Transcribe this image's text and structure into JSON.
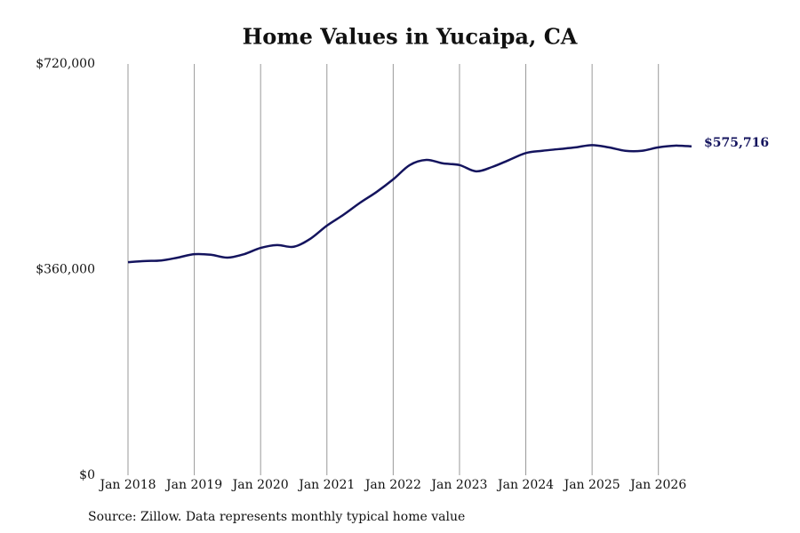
{
  "chart_data": {
    "type": "line",
    "title": "Home Values in Yucaipa, CA",
    "source": "Source: Zillow. Data represents monthly typical home value",
    "x": [
      "2018-01",
      "2018-04",
      "2018-07",
      "2018-10",
      "2019-01",
      "2019-04",
      "2019-07",
      "2019-10",
      "2020-01",
      "2020-04",
      "2020-07",
      "2020-10",
      "2021-01",
      "2021-04",
      "2021-07",
      "2021-10",
      "2022-01",
      "2022-04",
      "2022-07",
      "2022-10",
      "2023-01",
      "2023-04",
      "2023-07",
      "2023-10",
      "2024-01",
      "2024-04",
      "2024-07",
      "2024-10",
      "2025-01",
      "2025-04",
      "2025-07",
      "2025-10",
      "2026-01",
      "2026-04",
      "2026-07"
    ],
    "series": [
      {
        "name": "Home value",
        "color": "#14145e",
        "values": [
          373000,
          375000,
          376000,
          381000,
          387000,
          386000,
          381000,
          387000,
          398000,
          403000,
          400000,
          414000,
          437000,
          456000,
          477000,
          496000,
          518000,
          543000,
          552000,
          546000,
          543000,
          532000,
          540000,
          552000,
          564000,
          568000,
          571000,
          574000,
          578000,
          574000,
          568000,
          568000,
          574000,
          577000,
          575716
        ],
        "value_labels": [
          null,
          null,
          null,
          null,
          null,
          null,
          null,
          null,
          null,
          null,
          null,
          null,
          null,
          null,
          null,
          null,
          null,
          null,
          null,
          null,
          null,
          null,
          null,
          null,
          null,
          null,
          null,
          null,
          null,
          null,
          null,
          null,
          null,
          null,
          "$575,716"
        ]
      }
    ],
    "xlim": [
      "2018-01",
      "2026-07"
    ],
    "xticks": [
      {
        "value": "2018-01",
        "label": "Jan 2018"
      },
      {
        "value": "2019-01",
        "label": "Jan 2019"
      },
      {
        "value": "2020-01",
        "label": "Jan 2020"
      },
      {
        "value": "2021-01",
        "label": "Jan 2021"
      },
      {
        "value": "2022-01",
        "label": "Jan 2022"
      },
      {
        "value": "2023-01",
        "label": "Jan 2023"
      },
      {
        "value": "2024-01",
        "label": "Jan 2024"
      },
      {
        "value": "2025-01",
        "label": "Jan 2025"
      },
      {
        "value": "2026-01",
        "label": "Jan 2026"
      }
    ],
    "ylim": [
      0,
      720000
    ],
    "yticks": [
      {
        "value": 0,
        "label": "$0"
      },
      {
        "value": 360000,
        "label": "$360,000"
      },
      {
        "value": 720000,
        "label": "$720,000"
      }
    ],
    "grid": "x"
  }
}
